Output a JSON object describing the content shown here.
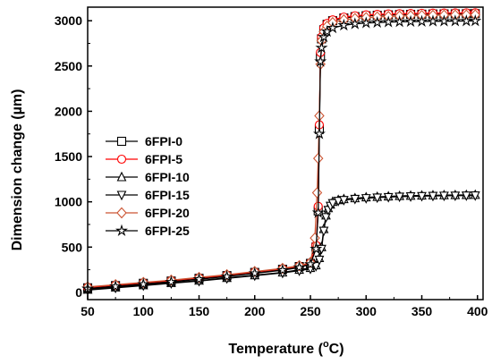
{
  "chart_data": {
    "type": "line",
    "title": "",
    "xlabel_main": "Temperature (",
    "xlabel_sup": "o",
    "xlabel_end": "C)",
    "ylabel": "Dimension change (µm)",
    "xlim": [
      50,
      405
    ],
    "ylim": [
      -80,
      3150
    ],
    "xticks": [
      50,
      100,
      150,
      200,
      250,
      300,
      350,
      400
    ],
    "yticks": [
      0,
      500,
      1000,
      1500,
      2000,
      2500,
      3000
    ],
    "grid": false,
    "legend_position": "center-left",
    "series": [
      {
        "name": "6FPI-0",
        "color": "#000000",
        "marker": "square",
        "x": [
          50,
          75,
          100,
          125,
          150,
          175,
          200,
          225,
          240,
          250,
          255,
          257,
          258,
          259,
          260,
          262,
          265,
          270,
          280,
          290,
          300,
          310,
          320,
          330,
          340,
          350,
          360,
          370,
          380,
          390,
          398
        ],
        "y": [
          50,
          75,
          100,
          125,
          155,
          185,
          220,
          255,
          285,
          320,
          500,
          900,
          1800,
          2600,
          2800,
          2900,
          2960,
          3000,
          3030,
          3045,
          3055,
          3060,
          3065,
          3068,
          3070,
          3072,
          3074,
          3075,
          3076,
          3077,
          3078
        ]
      },
      {
        "name": "6FPI-5",
        "color": "#ff0000",
        "marker": "circle",
        "x": [
          50,
          75,
          100,
          125,
          150,
          175,
          200,
          225,
          240,
          250,
          255,
          257,
          258,
          259,
          260,
          262,
          265,
          270,
          280,
          290,
          300,
          310,
          320,
          330,
          340,
          350,
          360,
          370,
          380,
          390,
          398
        ],
        "y": [
          55,
          80,
          105,
          130,
          160,
          190,
          225,
          260,
          290,
          325,
          520,
          950,
          1850,
          2650,
          2820,
          2920,
          2970,
          3010,
          3040,
          3055,
          3065,
          3070,
          3075,
          3078,
          3080,
          3082,
          3084,
          3085,
          3086,
          3087,
          3088
        ]
      },
      {
        "name": "6FPI-10",
        "color": "#000000",
        "marker": "triangle-up",
        "x": [
          50,
          75,
          100,
          125,
          150,
          175,
          200,
          225,
          240,
          250,
          255,
          258,
          260,
          262,
          264,
          266,
          268,
          270,
          275,
          280,
          290,
          300,
          310,
          320,
          330,
          340,
          350,
          360,
          370,
          380,
          390,
          398
        ],
        "y": [
          30,
          55,
          80,
          105,
          130,
          160,
          190,
          220,
          250,
          270,
          300,
          380,
          500,
          700,
          850,
          930,
          970,
          1000,
          1020,
          1030,
          1040,
          1050,
          1055,
          1060,
          1065,
          1068,
          1070,
          1072,
          1074,
          1075,
          1076,
          1077
        ]
      },
      {
        "name": "6FPI-15",
        "color": "#000000",
        "marker": "triangle-down",
        "x": [
          50,
          75,
          100,
          125,
          150,
          175,
          200,
          225,
          240,
          250,
          255,
          258,
          260,
          262,
          264,
          266,
          268,
          270,
          275,
          280,
          290,
          300,
          310,
          320,
          330,
          340,
          350,
          360,
          370,
          380,
          390,
          398
        ],
        "y": [
          25,
          50,
          75,
          100,
          125,
          155,
          185,
          215,
          240,
          260,
          290,
          360,
          480,
          680,
          830,
          910,
          955,
          985,
          1010,
          1020,
          1032,
          1040,
          1047,
          1052,
          1057,
          1060,
          1063,
          1065,
          1067,
          1068,
          1069,
          1070
        ]
      },
      {
        "name": "6FPI-20",
        "color": "#cc5533",
        "marker": "diamond",
        "x": [
          50,
          75,
          100,
          125,
          150,
          175,
          200,
          225,
          240,
          250,
          254,
          256,
          257,
          258,
          259,
          260,
          262,
          265,
          270,
          280,
          290,
          300,
          310,
          320,
          330,
          340,
          350,
          360,
          370,
          380,
          390,
          398
        ],
        "y": [
          60,
          85,
          110,
          135,
          165,
          195,
          230,
          265,
          295,
          330,
          600,
          1100,
          1480,
          1950,
          2520,
          2780,
          2880,
          2940,
          2980,
          3010,
          3025,
          3035,
          3042,
          3048,
          3052,
          3055,
          3058,
          3060,
          3062,
          3063,
          3064,
          3065
        ]
      },
      {
        "name": "6FPI-25",
        "color": "#000000",
        "marker": "star",
        "x": [
          50,
          75,
          100,
          125,
          150,
          175,
          200,
          225,
          240,
          250,
          255,
          257,
          258,
          259,
          260,
          262,
          265,
          270,
          280,
          290,
          300,
          310,
          320,
          330,
          340,
          350,
          360,
          370,
          380,
          390,
          398
        ],
        "y": [
          40,
          65,
          90,
          115,
          145,
          175,
          210,
          245,
          275,
          310,
          480,
          880,
          1750,
          2550,
          2700,
          2820,
          2880,
          2920,
          2950,
          2965,
          2975,
          2980,
          2985,
          2988,
          2990,
          2992,
          2994,
          2995,
          2996,
          2997,
          2998
        ]
      }
    ]
  }
}
